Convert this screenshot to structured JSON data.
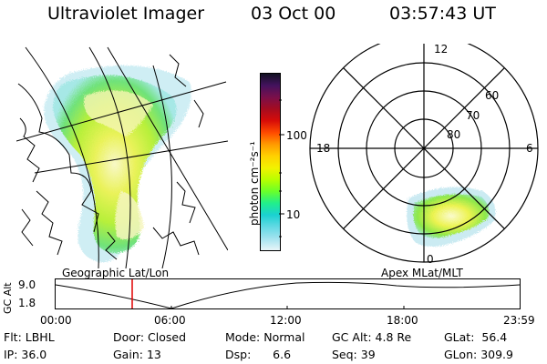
{
  "header": {
    "title": "Ultraviolet Imager",
    "date": "03 Oct 00",
    "time": "03:57:43 UT"
  },
  "left_panel": {
    "caption": "Geographic Lat/Lon"
  },
  "colorbar": {
    "unit_label": "photon cm⁻²s⁻¹",
    "tick_labels": [
      "100",
      "10"
    ],
    "colors": [
      "#111122",
      "#44125e",
      "#7a0f4a",
      "#a50c20",
      "#d80c08",
      "#ff4a00",
      "#ff9a00",
      "#ffd100",
      "#f2f200",
      "#b8ff00",
      "#6aff2a",
      "#21ef8b",
      "#1ad1d1",
      "#62d9e4",
      "#a3e3ef",
      "#e8f5f8"
    ]
  },
  "right_panel": {
    "caption": "Apex MLat/MLT",
    "mlt_labels": {
      "top": "12",
      "left": "18",
      "right": "6",
      "bottom": "0"
    },
    "lat_labels": [
      "60",
      "70",
      "80"
    ]
  },
  "timeline": {
    "axis_label": "GC Alt",
    "y_labels": [
      "9.0",
      "1.8"
    ],
    "x_labels": [
      "00:00",
      "06:00",
      "12:00",
      "18:00",
      "23:59"
    ],
    "marker_color": "#e00000"
  },
  "info": {
    "row1": [
      {
        "label": "Flt:",
        "value": "LBHL"
      },
      {
        "label": "Door:",
        "value": "Closed"
      },
      {
        "label": "Mode:",
        "value": "Normal"
      },
      {
        "label": "GC Alt:",
        "value": "4.8 Re"
      },
      {
        "label": "GLat:",
        "value": "56.4"
      }
    ],
    "row2": [
      {
        "label": "IP:",
        "value": "36.0"
      },
      {
        "label": "Gain:",
        "value": "13"
      },
      {
        "label": "Dsp:",
        "value": "6.6"
      },
      {
        "label": "Seq:",
        "value": "39"
      },
      {
        "label": "GLon:",
        "value": "309.9"
      }
    ]
  }
}
